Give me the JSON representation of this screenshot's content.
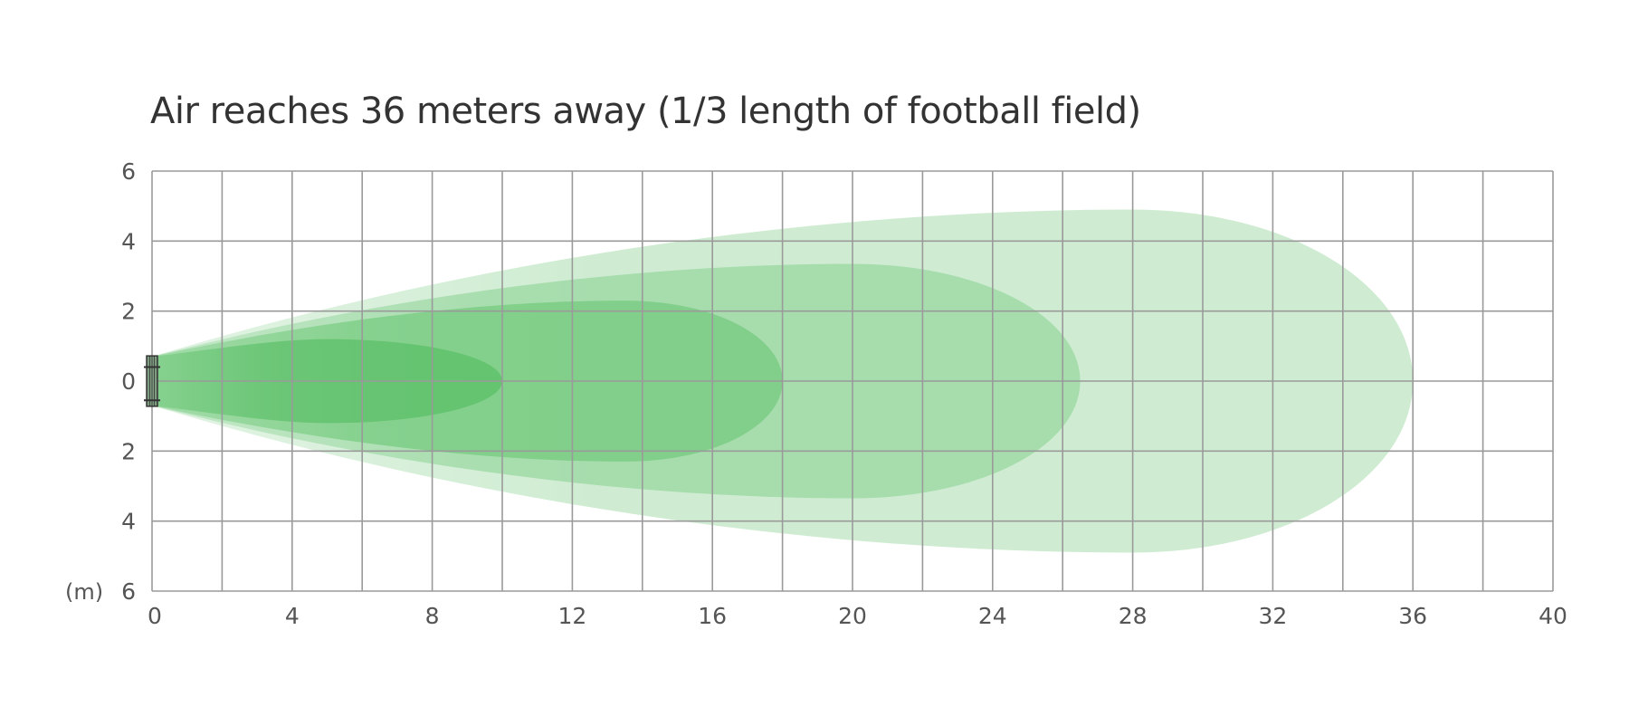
{
  "chart_data": {
    "type": "area",
    "title": "Air reaches 36 meters away (1/3 length of football field)",
    "unit_label": "(m)",
    "x_ticks": [
      "0",
      "4",
      "8",
      "12",
      "16",
      "20",
      "24",
      "28",
      "32",
      "36",
      "40"
    ],
    "y_ticks": [
      "6",
      "4",
      "2",
      "0",
      "2",
      "4",
      "6"
    ],
    "xlim": [
      0,
      40
    ],
    "ylim": [
      -6,
      6
    ],
    "grid": true,
    "grid_step_x": 2,
    "grid_step_y": 2,
    "series": [
      {
        "reach": 36,
        "half_width_max": 4.9,
        "peak_at": 28,
        "color": "#bfe6c3",
        "opacity": 0.75
      },
      {
        "reach": 26.5,
        "half_width_max": 3.35,
        "peak_at": 20,
        "color": "#86d08f",
        "opacity": 0.55
      },
      {
        "reach": 18,
        "half_width_max": 2.3,
        "peak_at": 13.5,
        "color": "#62c46d",
        "opacity": 0.55
      },
      {
        "reach": 10,
        "half_width_max": 1.2,
        "peak_at": 5,
        "color": "#4cba5a",
        "opacity": 0.55
      }
    ],
    "source_color": "#333333"
  }
}
